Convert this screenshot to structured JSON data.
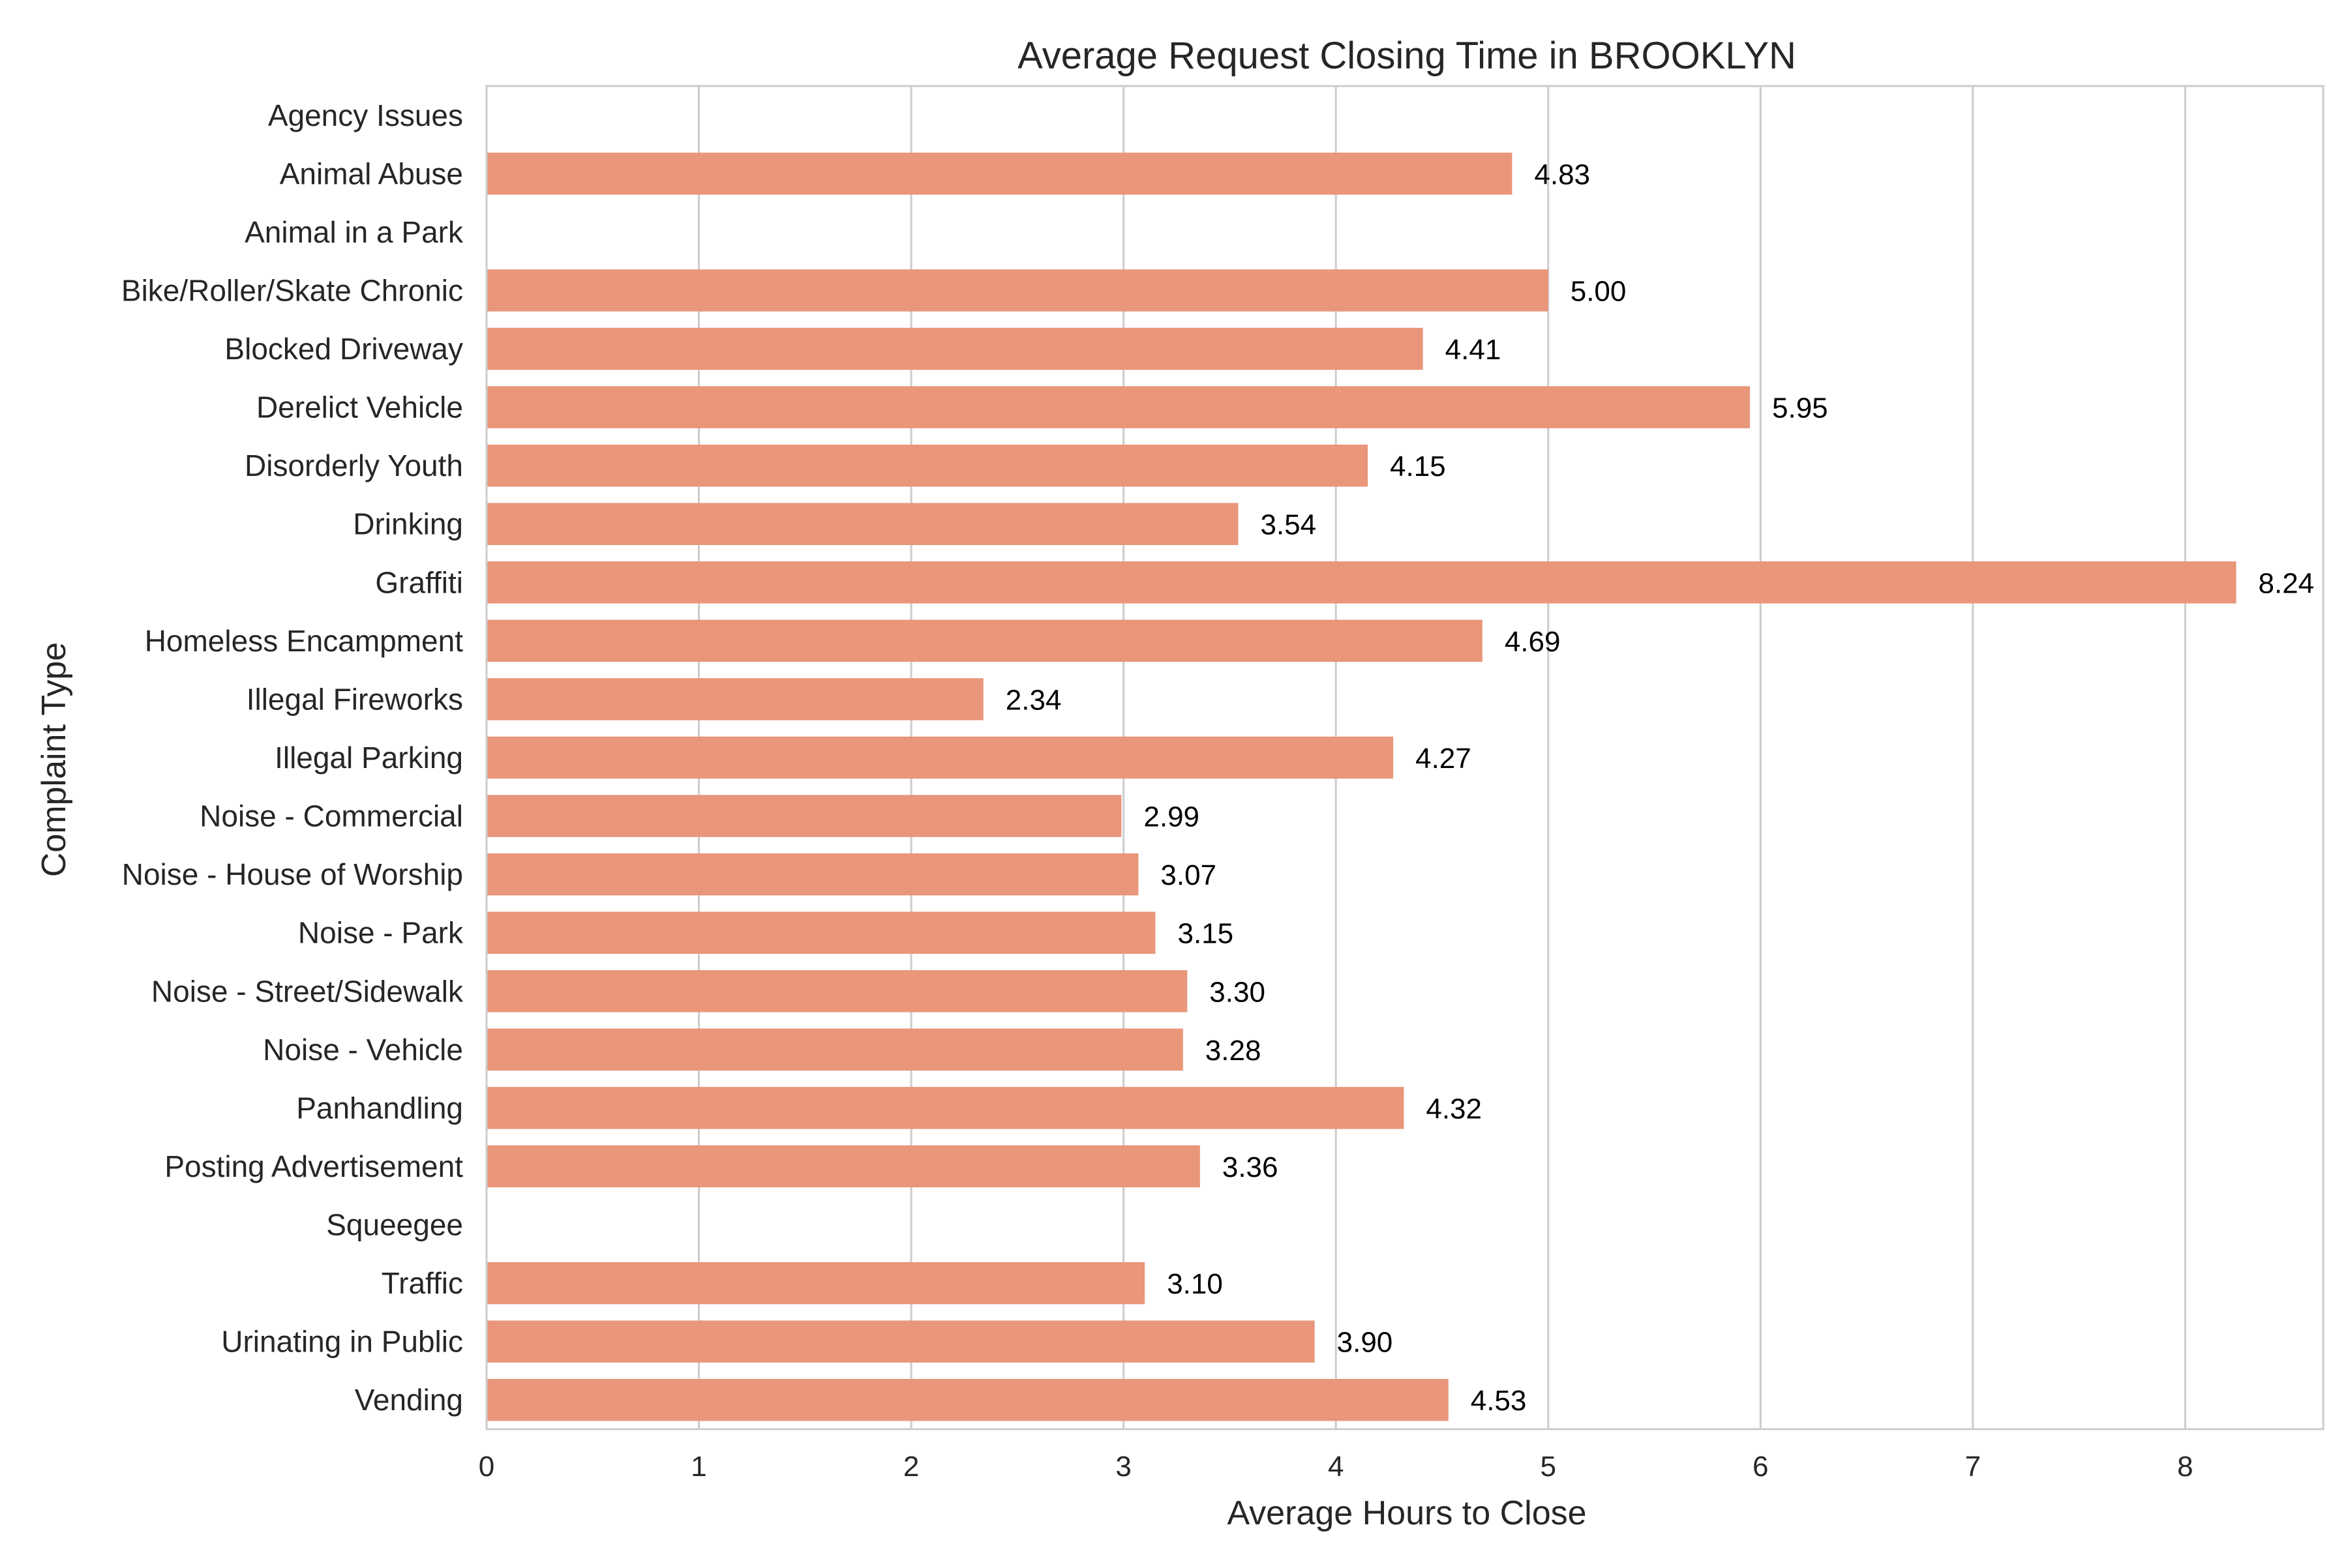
{
  "chart_data": {
    "type": "bar",
    "orientation": "horizontal",
    "title": "Average Request Closing Time in BROOKLYN",
    "xlabel": "Average Hours to Close",
    "ylabel": "Complaint Type",
    "xlim": [
      0,
      8.65
    ],
    "xticks": [
      0,
      1,
      2,
      3,
      4,
      5,
      6,
      7,
      8
    ],
    "grid": true,
    "bar_color": "#e9967a",
    "categories": [
      "Agency Issues",
      "Animal Abuse",
      "Animal in a Park",
      "Bike/Roller/Skate Chronic",
      "Blocked Driveway",
      "Derelict Vehicle",
      "Disorderly Youth",
      "Drinking",
      "Graffiti",
      "Homeless Encampment",
      "Illegal Fireworks",
      "Illegal Parking",
      "Noise - Commercial",
      "Noise - House of Worship",
      "Noise - Park",
      "Noise - Street/Sidewalk",
      "Noise - Vehicle",
      "Panhandling",
      "Posting Advertisement",
      "Squeegee",
      "Traffic",
      "Urinating in Public",
      "Vending"
    ],
    "values": [
      null,
      4.83,
      null,
      5.0,
      4.41,
      5.95,
      4.15,
      3.54,
      8.24,
      4.69,
      2.34,
      4.27,
      2.99,
      3.07,
      3.15,
      3.3,
      3.28,
      4.32,
      3.36,
      null,
      3.1,
      3.9,
      4.53
    ],
    "value_labels": [
      null,
      "4.83",
      null,
      "5.00",
      "4.41",
      "5.95",
      "4.15",
      "3.54",
      "8.24",
      "4.69",
      "2.34",
      "4.27",
      "2.99",
      "3.07",
      "3.15",
      "3.30",
      "3.28",
      "4.32",
      "3.36",
      null,
      "3.10",
      "3.90",
      "4.53"
    ]
  }
}
